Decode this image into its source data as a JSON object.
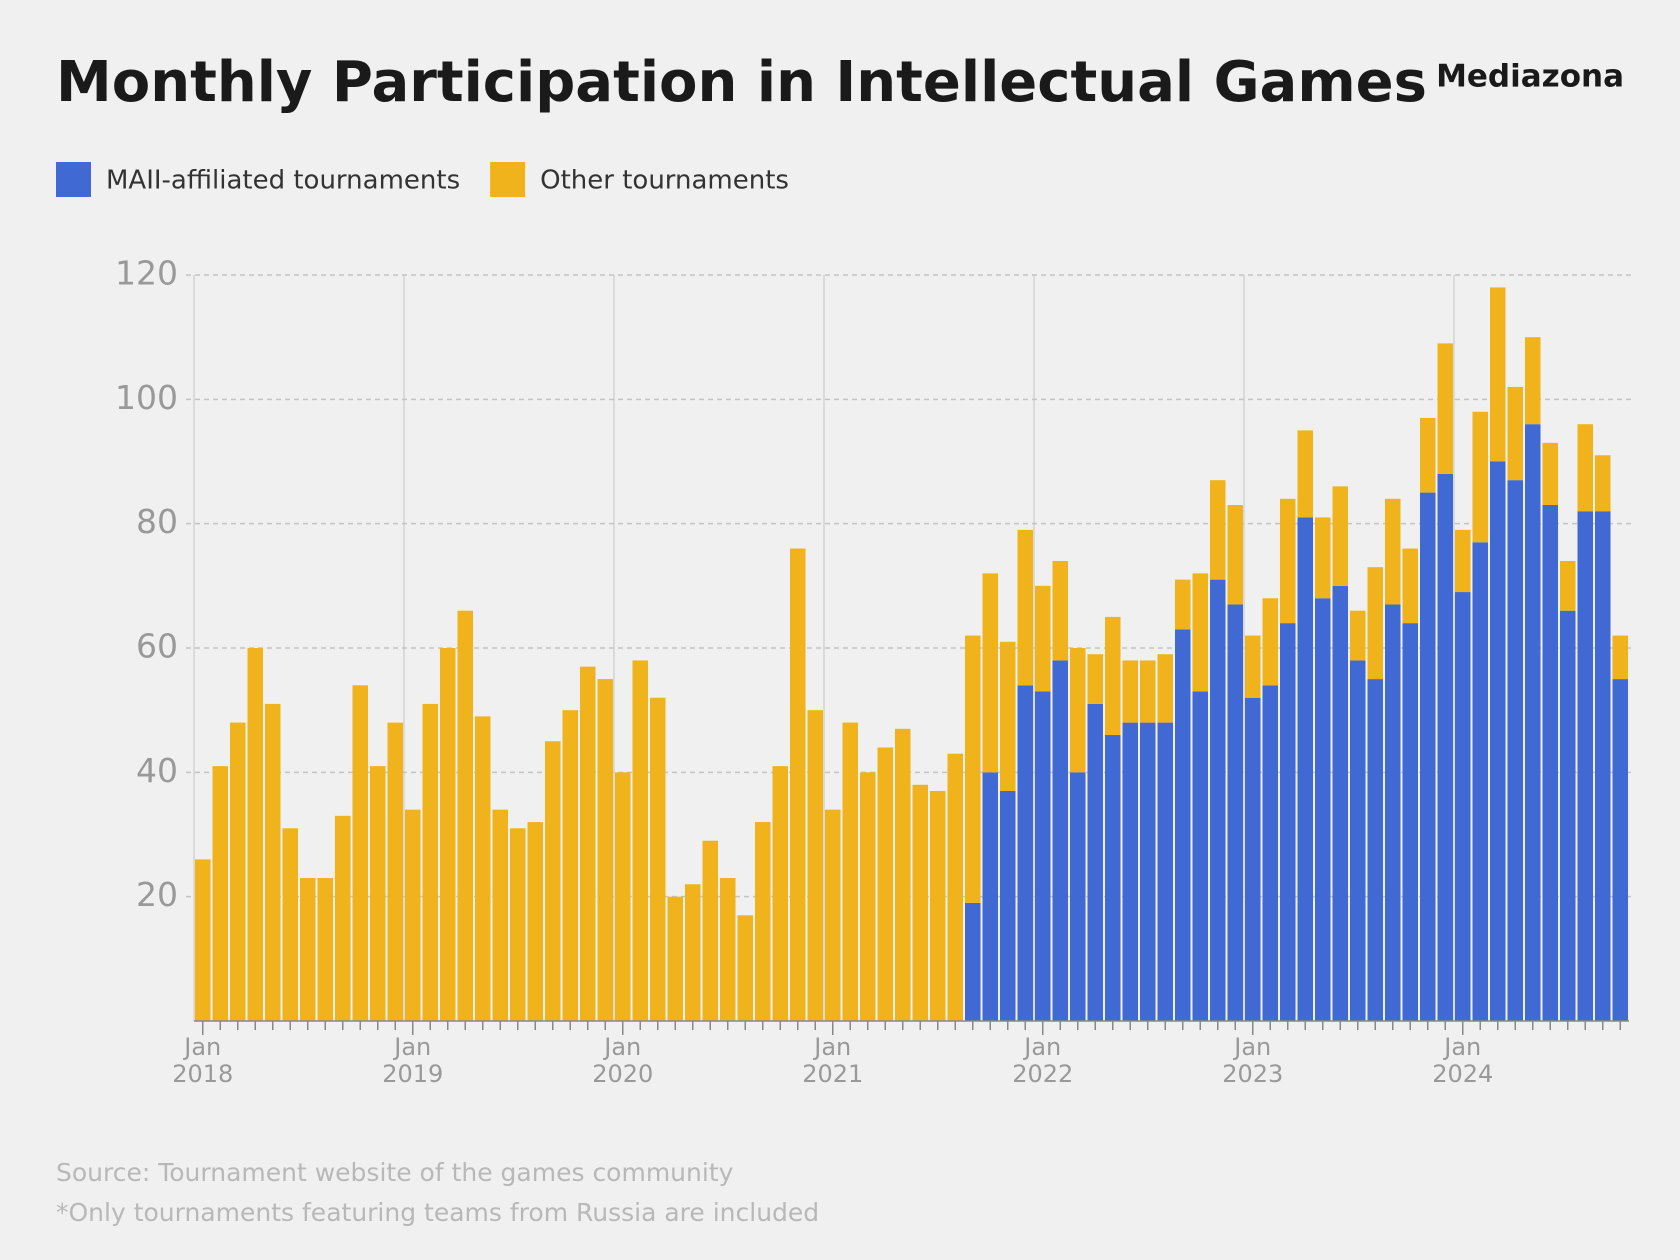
{
  "chart_data": {
    "type": "stacked_bar",
    "title": "Monthly Participation in Intellectual Games",
    "brand": "Mediazona",
    "source": "Source: Tournament website of the games community",
    "note": "*Only tournaments featuring teams from Russia are included",
    "categories": [
      "Jan 2018",
      null,
      null,
      null,
      null,
      null,
      null,
      null,
      null,
      null,
      null,
      null,
      "Jan 2019",
      null,
      null,
      null,
      null,
      null,
      null,
      null,
      null,
      null,
      null,
      null,
      "Jan 2020",
      null,
      null,
      null,
      null,
      null,
      null,
      null,
      null,
      null,
      null,
      null,
      "Jan 2021",
      null,
      null,
      null,
      null,
      null,
      null,
      null,
      null,
      null,
      null,
      null,
      "Jan 2022",
      null,
      null,
      null,
      null,
      null,
      null,
      null,
      null,
      null,
      null,
      null,
      "Jan 2023",
      null,
      null,
      null,
      null,
      null,
      null,
      null,
      null,
      null,
      null,
      null,
      "Jan 2024",
      null,
      null,
      null,
      null,
      null,
      null,
      null,
      null,
      null
    ],
    "series": [
      {
        "name": "MAII-affiliated tournaments",
        "color": "#4169d4",
        "values": [
          0,
          0,
          0,
          0,
          0,
          0,
          0,
          0,
          0,
          0,
          0,
          0,
          0,
          0,
          0,
          0,
          0,
          0,
          0,
          0,
          0,
          0,
          0,
          0,
          0,
          0,
          0,
          0,
          0,
          0,
          0,
          0,
          0,
          0,
          0,
          0,
          0,
          0,
          0,
          0,
          0,
          0,
          0,
          0,
          19,
          40,
          37,
          54,
          53,
          58,
          40,
          51,
          46,
          48,
          48,
          48,
          63,
          53,
          71,
          67,
          52,
          54,
          64,
          81,
          68,
          70,
          58,
          55,
          67,
          64,
          85,
          88,
          69,
          77,
          90,
          87,
          96,
          83,
          66,
          82,
          82,
          55
        ]
      },
      {
        "name": "Other tournaments",
        "color": "#f0b31c",
        "values": [
          26,
          41,
          48,
          60,
          51,
          31,
          23,
          23,
          33,
          54,
          41,
          48,
          34,
          51,
          60,
          66,
          49,
          34,
          31,
          32,
          45,
          50,
          57,
          55,
          40,
          58,
          52,
          20,
          22,
          29,
          23,
          17,
          32,
          41,
          76,
          50,
          34,
          48,
          40,
          44,
          47,
          38,
          37,
          43,
          43,
          32,
          24,
          25,
          17,
          16,
          20,
          8,
          19,
          10,
          10,
          11,
          8,
          19,
          16,
          16,
          10,
          14,
          20,
          14,
          13,
          16,
          8,
          18,
          17,
          12,
          12,
          21,
          10,
          21,
          28,
          15,
          14,
          10,
          8,
          14,
          9,
          7
        ]
      }
    ],
    "ylim": [
      0,
      120
    ],
    "yticks": [
      20,
      40,
      60,
      80,
      100,
      120
    ],
    "grid": true
  }
}
